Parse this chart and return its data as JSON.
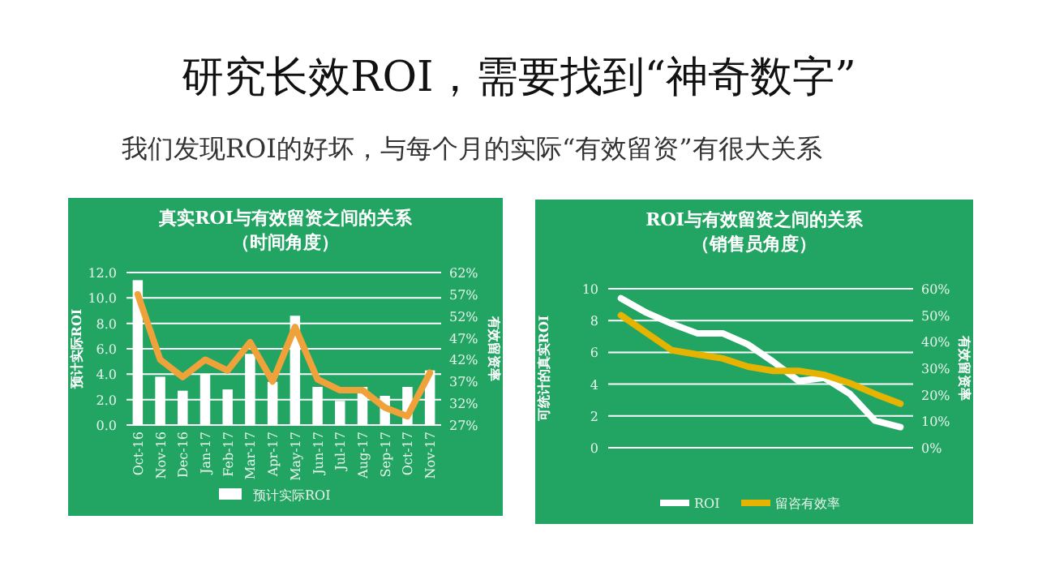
{
  "chart_data": [
    {
      "type": "other",
      "title": "研究长效ROI，需要找到“神奇数字”",
      "subtitle": "我们发现ROI的好坏，与每个月的实际“有效留资”有很大关系"
    },
    {
      "type": "bar",
      "title": "真实ROI与有效留资之间的关系",
      "subtitle": "（时间角度）",
      "ylabel": "预计实际ROI",
      "y2label": "有效留资率",
      "categories": [
        "Oct-16",
        "Nov-16",
        "Dec-16",
        "Jan-17",
        "Feb-17",
        "Mar-17",
        "Apr-17",
        "May-17",
        "Jun-17",
        "Jul-17",
        "Aug-17",
        "Sep-17",
        "Oct-17",
        "Nov-17"
      ],
      "series": [
        {
          "name": "预计实际ROI",
          "type": "bar",
          "color": "#ffffff",
          "values": [
            11.4,
            3.8,
            2.7,
            4.0,
            2.8,
            5.6,
            3.4,
            8.6,
            3.0,
            1.9,
            3.0,
            2.3,
            3.0,
            4.3
          ]
        },
        {
          "type": "line",
          "axis": "y2",
          "color": "#f0a23a",
          "values": [
            57,
            42,
            38,
            42,
            39.5,
            46,
            37,
            49.5,
            37.5,
            35,
            35,
            31,
            29,
            39
          ]
        }
      ],
      "ylim": [
        0,
        12
      ],
      "yticks": [
        {
          "value": 0,
          "label": "0.0"
        },
        {
          "value": 2,
          "label": "2.0"
        },
        {
          "value": 4,
          "label": "4.0"
        },
        {
          "value": 6,
          "label": "6.0"
        },
        {
          "value": 8,
          "label": "8.0"
        },
        {
          "value": 10,
          "label": "10.0"
        },
        {
          "value": 12,
          "label": "12.0"
        }
      ],
      "y2lim": [
        27,
        62
      ],
      "y2ticks": [
        {
          "value": 27,
          "label": "27%"
        },
        {
          "value": 32,
          "label": "32%"
        },
        {
          "value": 37,
          "label": "37%"
        },
        {
          "value": 42,
          "label": "42%"
        },
        {
          "value": 47,
          "label": "47%"
        },
        {
          "value": 52,
          "label": "52%"
        },
        {
          "value": 57,
          "label": "57%"
        },
        {
          "value": 62,
          "label": "62%"
        }
      ],
      "grid": "y",
      "legend": "bottom",
      "marker": "none",
      "line_style": "solid"
    },
    {
      "type": "line",
      "title": "ROI与有效留资之间的关系",
      "subtitle": "（销售员角度）",
      "ylabel": "可统计的真实ROI",
      "y2label": "有效留资率",
      "categories": [
        null,
        null,
        null,
        null,
        null,
        null,
        null,
        null,
        null,
        null,
        null,
        null
      ],
      "series": [
        {
          "name": "ROI",
          "color": "#ffffff",
          "values": [
            9.4,
            8.5,
            7.8,
            7.2,
            7.2,
            6.5,
            5.4,
            4.2,
            4.4,
            3.4,
            1.7,
            1.3
          ]
        },
        {
          "name": "留咨有效率",
          "axis": "y2",
          "color": "#e6b400",
          "values": [
            50,
            43.4,
            36.8,
            35.2,
            33.7,
            30.6,
            29,
            29,
            27.5,
            24.4,
            20.3,
            16.6
          ]
        }
      ],
      "ylim": [
        0,
        10
      ],
      "yticks": [
        0,
        2,
        4,
        6,
        8,
        10
      ],
      "y2lim": [
        0,
        60
      ],
      "y2ticks": [
        {
          "value": 0,
          "label": "0%"
        },
        {
          "value": 10,
          "label": "10%"
        },
        {
          "value": 20,
          "label": "20%"
        },
        {
          "value": 30,
          "label": "30%"
        },
        {
          "value": 40,
          "label": "40%"
        },
        {
          "value": 50,
          "label": "50%"
        },
        {
          "value": 60,
          "label": "60%"
        }
      ],
      "grid": "y",
      "legend": "bottom",
      "marker": "none",
      "line_style": "solid"
    }
  ]
}
